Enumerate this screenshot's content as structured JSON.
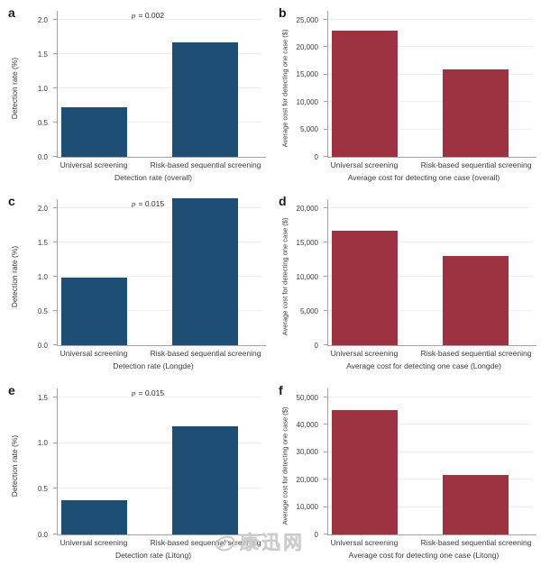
{
  "watermark": {
    "text": "康迅网",
    "icon": "swirl-logo"
  },
  "chart_data": [
    {
      "panel": "a",
      "type": "bar",
      "categories": [
        "Universal screening",
        "Risk-based sequential screening"
      ],
      "values": [
        0.73,
        1.67
      ],
      "p_label": "p = 0.002",
      "title": "Detection rate (overall)",
      "xlabel": "Detection rate (overall)",
      "ylabel": "Detection rate (%)",
      "yticks": [
        0,
        0.5,
        1,
        1.5,
        2
      ],
      "ytick_labels": [
        "0.0",
        "0.5",
        "1.0",
        "1.5",
        "2.0"
      ],
      "ylim": [
        0,
        2
      ],
      "grid": true,
      "legend": "none",
      "bar_color": "#1e4e73"
    },
    {
      "panel": "b",
      "type": "bar",
      "categories": [
        "Universal screening",
        "Risk-based sequential screening"
      ],
      "values": [
        23100,
        16000
      ],
      "p_label": "",
      "title": "Average cost for detecting one case (overall)",
      "xlabel": "Average cost for detecting one case (overall)",
      "ylabel": "Average cost for detecting one case ($)",
      "yticks": [
        0,
        5000,
        10000,
        15000,
        20000,
        25000
      ],
      "ytick_labels": [
        "0",
        "5,000",
        "10,000",
        "15,000",
        "20,000",
        "25,000"
      ],
      "ylim": [
        0,
        25000
      ],
      "grid": true,
      "legend": "none",
      "bar_color": "#9d3340"
    },
    {
      "panel": "c",
      "type": "bar",
      "categories": [
        "Universal screening",
        "Risk-based sequential screening"
      ],
      "values": [
        0.99,
        2.15
      ],
      "p_label": "p = 0.015",
      "title": "Detection rate (Longde)",
      "xlabel": "Detection rate (Longde)",
      "ylabel": "Detection rate (%)",
      "yticks": [
        0,
        0.5,
        1,
        1.5,
        2
      ],
      "ytick_labels": [
        "0.0",
        "0.5",
        "1.0",
        "1.5",
        "2.0"
      ],
      "ylim": [
        0,
        2
      ],
      "grid": true,
      "legend": "none",
      "bar_color": "#1e4e73"
    },
    {
      "panel": "d",
      "type": "bar",
      "categories": [
        "Universal screening",
        "Risk-based sequential screening"
      ],
      "values": [
        16700,
        13000
      ],
      "p_label": "",
      "title": "Average cost for detecting one case (Longde)",
      "xlabel": "Average cost for detecting one case (Longde)",
      "ylabel": "Average cost for detecting one case ($)",
      "yticks": [
        0,
        5000,
        10000,
        15000,
        20000
      ],
      "ytick_labels": [
        "0",
        "5,000",
        "10,000",
        "15,000",
        "20,000"
      ],
      "ylim": [
        0,
        20000
      ],
      "grid": true,
      "legend": "none",
      "bar_color": "#9d3340"
    },
    {
      "panel": "e",
      "type": "bar",
      "categories": [
        "Universal screening",
        "Risk-based sequential screening"
      ],
      "values": [
        0.38,
        1.18
      ],
      "p_label": "p = 0.015",
      "title": "Detection rate (Litong)",
      "xlabel": "Detection rate (Litong)",
      "ylabel": "Detection rate (%)",
      "yticks": [
        0,
        0.5,
        1,
        1.5
      ],
      "ytick_labels": [
        "0.0",
        "0.5",
        "1.0",
        "1.5"
      ],
      "ylim": [
        0,
        1.5
      ],
      "grid": true,
      "legend": "none",
      "bar_color": "#1e4e73"
    },
    {
      "panel": "f",
      "type": "bar",
      "categories": [
        "Universal screening",
        "Risk-based sequential screening"
      ],
      "values": [
        45500,
        21700
      ],
      "p_label": "",
      "title": "Average cost for detecting one case (Litong)",
      "xlabel": "Average cost for detecting one case (Litong)",
      "ylabel": "Average cost for detecting one case ($)",
      "yticks": [
        0,
        10000,
        20000,
        30000,
        40000,
        50000
      ],
      "ytick_labels": [
        "0",
        "10,000",
        "20,000",
        "30,000",
        "40,000",
        "50,000"
      ],
      "ylim": [
        0,
        50000
      ],
      "grid": true,
      "legend": "none",
      "bar_color": "#9d3340"
    }
  ]
}
